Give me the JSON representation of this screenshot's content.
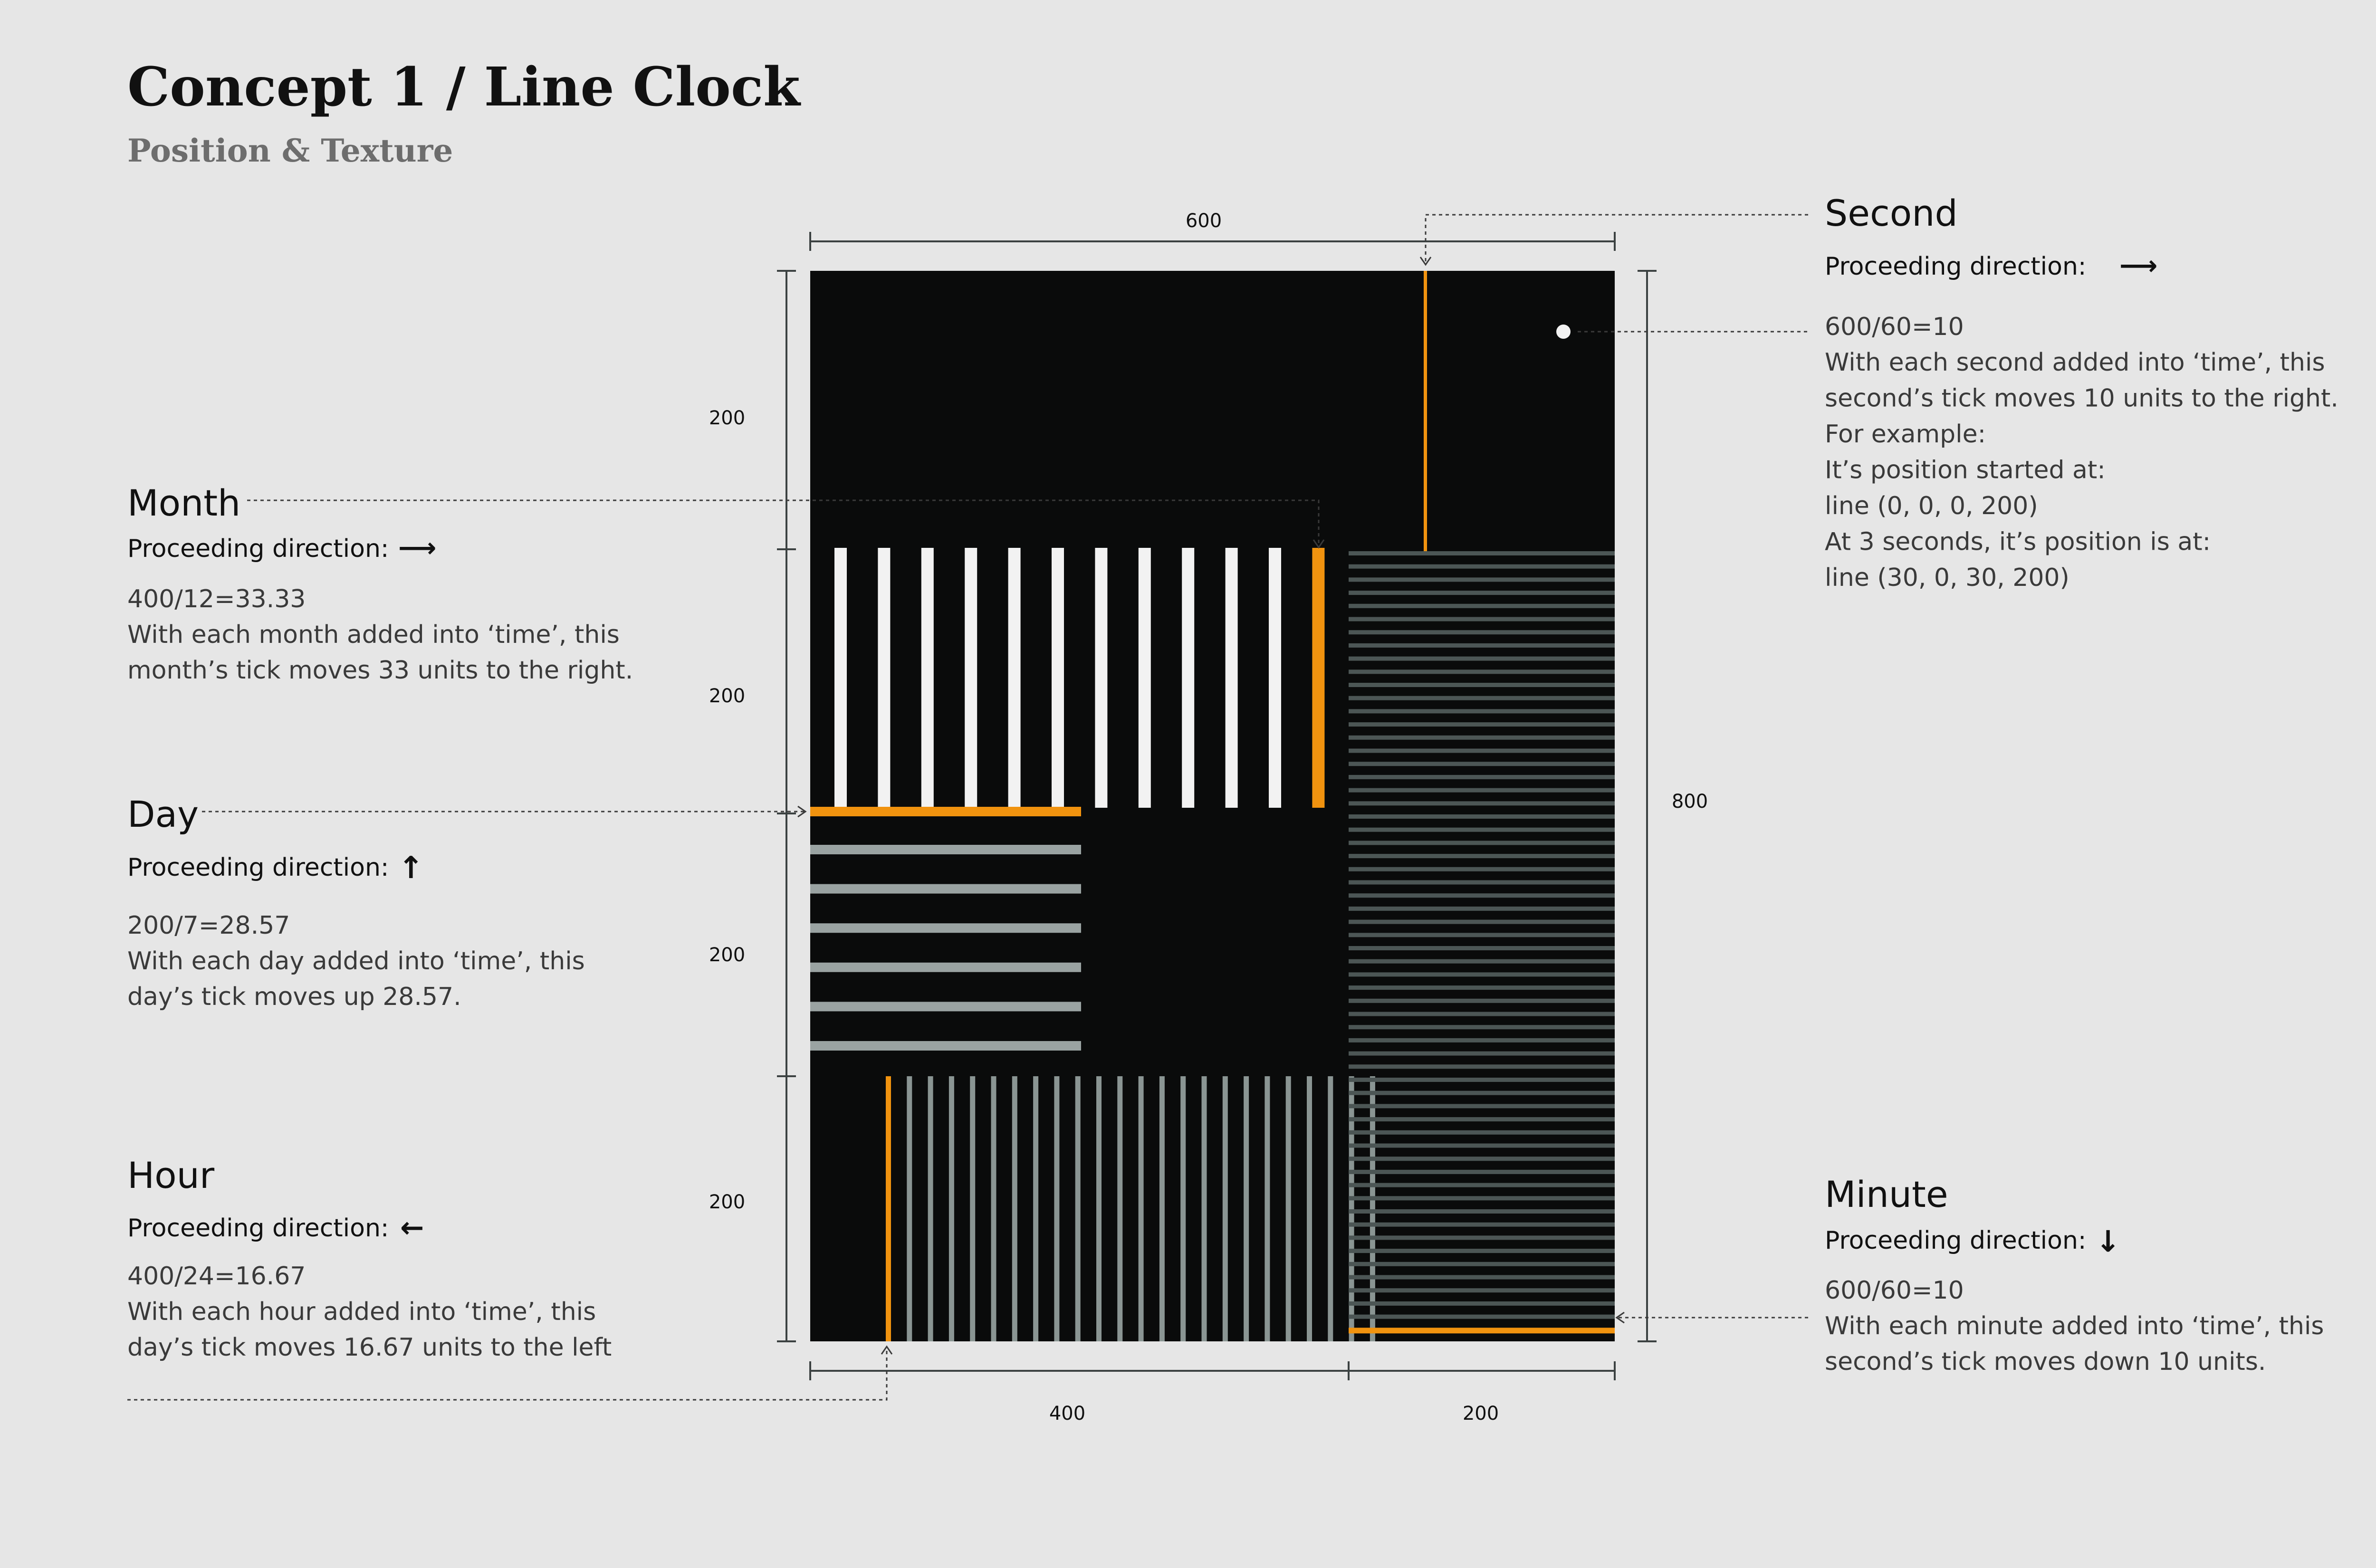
{
  "header": {
    "title": "Concept 1 / Line Clock",
    "subtitle": "Position & Texture"
  },
  "colors": {
    "background": "#e6e6e6",
    "canvas": "#0a0b0b",
    "accent": "#f1930f",
    "month_tick": "#f2f2f2",
    "day_tick": "#9aa3a2",
    "hour_tick": "#8a9593",
    "minute_tick": "#4c5655",
    "dim_line": "#3c4242",
    "annotation": "#3a3a3a"
  },
  "dimensions": {
    "width_total": "600",
    "height_top": "200",
    "height_month": "200",
    "height_day": "200",
    "height_hour": "200",
    "height_total": "800",
    "width_left": "400",
    "width_right": "200"
  },
  "annotations": {
    "second": {
      "title": "Second",
      "direction_label": "Proceeding direction:",
      "direction_arrow": "⟶",
      "formula": "600/60=10",
      "lines": [
        "With each second added into ‘time’, this",
        "second’s tick moves 10 units to the right.",
        "For example:",
        "It’s position started at:",
        "line (0, 0, 0, 200)",
        "At 3 seconds, it’s position is at:",
        "line (30, 0, 30, 200)"
      ]
    },
    "month": {
      "title": "Month",
      "direction_label": "Proceeding direction:",
      "direction_arrow": "⟶",
      "formula": "400/12=33.33",
      "lines": [
        "With each month added into ‘time’, this",
        "month’s tick moves 33 units to the right."
      ]
    },
    "day": {
      "title": "Day",
      "direction_label": "Proceeding direction:",
      "direction_arrow": "↑",
      "formula": "200/7=28.57",
      "lines": [
        "With each day added into ‘time’, this",
        "day’s tick moves up 28.57."
      ]
    },
    "hour": {
      "title": "Hour",
      "direction_label": "Proceeding direction:",
      "direction_arrow": "←",
      "formula": "400/24=16.67",
      "lines": [
        "With each hour added into ‘time’, this",
        "day’s tick moves 16.67 units to the left"
      ]
    },
    "minute": {
      "title": "Minute",
      "direction_label": "Proceeding direction:",
      "direction_arrow": "↓",
      "formula": "600/60=10",
      "lines": [
        "With each minute added into ‘time’, this",
        "second’s tick moves down 10 units."
      ]
    }
  },
  "ticks": {
    "month_count": 12,
    "month_highlight_index": 11,
    "day_count": 6,
    "hour_count": 24,
    "hour_highlight_index": 0,
    "minute_count": 60,
    "minute_highlight_index": 59,
    "second_position_fraction": 0.77
  }
}
